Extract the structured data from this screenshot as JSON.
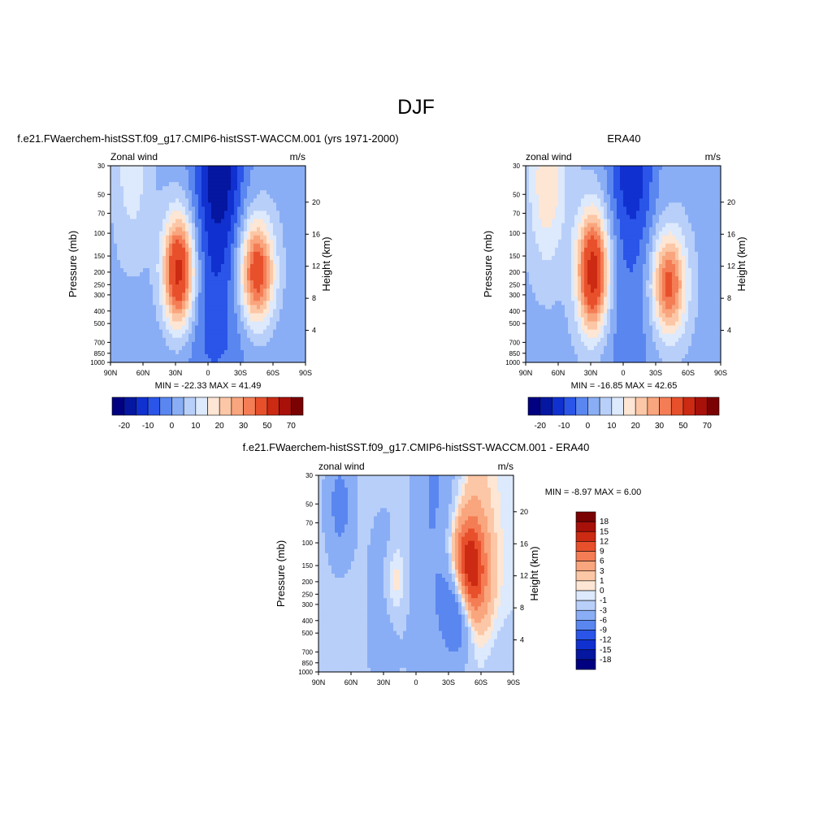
{
  "page": {
    "title": "DJF"
  },
  "colors": {
    "panel_levels_main": [
      "#000080",
      "#0516a0",
      "#1030d0",
      "#2a55e8",
      "#5a86f0",
      "#8aaef5",
      "#b8cff9",
      "#dde9fc",
      "#fde6d4",
      "#fcc7a6",
      "#f9a57d",
      "#f47d55",
      "#e8502c",
      "#cc2a12",
      "#a8100a",
      "#7a0202"
    ],
    "panel_levels_diff": [
      "#000080",
      "#0516a0",
      "#1030d0",
      "#2a55e8",
      "#5a86f0",
      "#8aaef5",
      "#b8cff9",
      "#dde9fc",
      "#fde6d4",
      "#fcc7a6",
      "#f9a57d",
      "#f47d55",
      "#e8502c",
      "#cc2a12",
      "#a8100a",
      "#7a0202"
    ]
  },
  "chart_data": [
    {
      "type": "heatmap",
      "title": "f.e21.FWaerchem-histSST.f09_g17.CMIP6-histSST-WACCM.001 (yrs 1971-2000)",
      "left_label": "Zonal wind",
      "right_label": "m/s",
      "ylabel": "Pressure (mb)",
      "ylabel_right": "Height (km)",
      "x_ticks": [
        "90N",
        "60N",
        "30N",
        "0",
        "30S",
        "60S",
        "90S"
      ],
      "y_ticks": [
        "30",
        "50",
        "70",
        "100",
        "150",
        "200",
        "250",
        "300",
        "400",
        "500",
        "700",
        "850",
        "1000"
      ],
      "y_ticks_right": [
        "20",
        "16",
        "12",
        "8",
        "4"
      ],
      "stats": "MIN = -22.33  MAX =  41.49",
      "colorbar_labels": [
        "-20",
        "-10",
        "0",
        "10",
        "20",
        "30",
        "50",
        "70"
      ],
      "jets": [
        {
          "lat": 27,
          "pressure": 200,
          "max_ms": 41.49
        },
        {
          "lat": -45,
          "pressure": 200,
          "max_ms": 35
        }
      ],
      "min": -22.33,
      "max": 41.49
    },
    {
      "type": "heatmap",
      "title": "ERA40",
      "left_label": "zonal wind",
      "right_label": "m/s",
      "ylabel": "Pressure (mb)",
      "ylabel_right": "Height (km)",
      "x_ticks": [
        "90N",
        "60N",
        "30N",
        "0",
        "30S",
        "60S",
        "90S"
      ],
      "y_ticks": [
        "30",
        "50",
        "70",
        "100",
        "150",
        "200",
        "250",
        "300",
        "400",
        "500",
        "700",
        "850",
        "1000"
      ],
      "y_ticks_right": [
        "20",
        "16",
        "12",
        "8",
        "4"
      ],
      "stats": "MIN = -16.85  MAX =  42.65",
      "colorbar_labels": [
        "-20",
        "-10",
        "0",
        "10",
        "20",
        "30",
        "50",
        "70"
      ],
      "jets": [
        {
          "lat": 28,
          "pressure": 200,
          "max_ms": 42.65
        },
        {
          "lat": -42,
          "pressure": 250,
          "max_ms": 32
        }
      ],
      "min": -16.85,
      "max": 42.65
    },
    {
      "type": "heatmap",
      "title": "f.e21.FWaerchem-histSST.f09_g17.CMIP6-histSST-WACCM.001 - ERA40",
      "left_label": "zonal wind",
      "right_label": "m/s",
      "ylabel": "Pressure (mb)",
      "ylabel_right": "Height (km)",
      "x_ticks": [
        "90N",
        "60N",
        "30N",
        "0",
        "30S",
        "60S",
        "90S"
      ],
      "y_ticks": [
        "30",
        "50",
        "70",
        "100",
        "150",
        "200",
        "250",
        "300",
        "400",
        "500",
        "700",
        "850",
        "1000"
      ],
      "y_ticks_right": [
        "20",
        "16",
        "12",
        "8",
        "4"
      ],
      "stats": "MIN =  -8.97  MAX =   6.00",
      "colorbar_labels": [
        "18",
        "15",
        "12",
        "9",
        "6",
        "3",
        "1",
        "0",
        "-1",
        "-3",
        "-6",
        "-9",
        "-12",
        "-15",
        "-18"
      ],
      "min": -8.97,
      "max": 6.0
    }
  ]
}
